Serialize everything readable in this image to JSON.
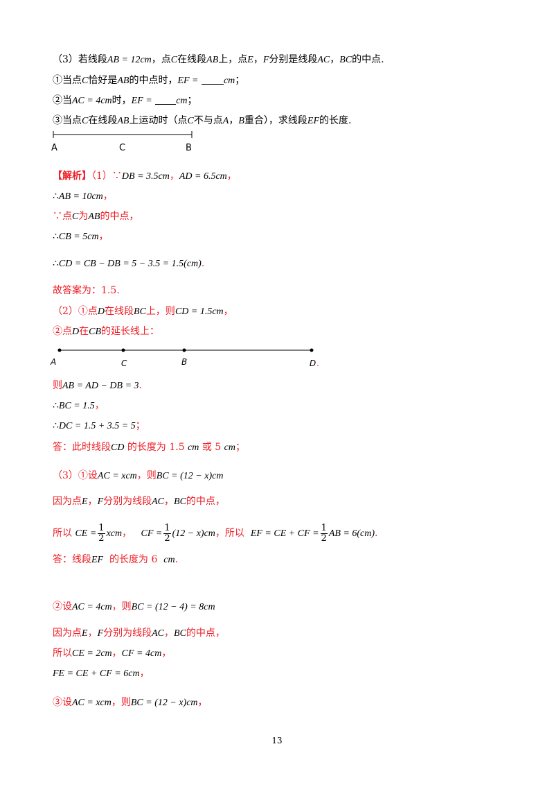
{
  "q3_stem": "（3）若线段AB = 12cm，点C在线段AB上，点E，F分别是线段AC，BC的中点.",
  "q3_stem_parts": {
    "a": "（3）若线段",
    "b": "AB = 12cm",
    "c": "，点",
    "d": "C",
    "e": "在线段",
    "f": "AB",
    "g": "上，点",
    "h": "E",
    "i": "，",
    "j": "F",
    "k": "分别是线段",
    "l": "AC",
    "m": "，",
    "n": "BC",
    "o": "的中点."
  },
  "q3_1": {
    "a": "①当点",
    "b": "C",
    "c": "恰好是",
    "d": "AB",
    "e": "的中点时，",
    "f": "EF =",
    "g": "cm",
    "h": "；"
  },
  "q3_2": {
    "a": "②当",
    "b": "AC = 4cm",
    "c": "时，",
    "d": "EF =",
    "e": "cm",
    "f": "；"
  },
  "q3_3": {
    "a": "③当点",
    "b": "C",
    "c": "在线段",
    "d": "AB",
    "e": "上运动时（点",
    "f": "C",
    "g": "不与点",
    "h": "A",
    "i": "，",
    "j": "B",
    "k": "重合），求线段",
    "l": "EF",
    "m": "的长度."
  },
  "fig1_labels": {
    "a": "A",
    "c": "C",
    "b": "B"
  },
  "jiexi": {
    "tag": "【解析】",
    "a": "（1）∵",
    "b": "DB = 3.5cm",
    "c": "，",
    "d": "AD = 6.5cm",
    "e": "，"
  },
  "s1": {
    "a": "∴",
    "b": "AB = 10cm",
    "c": "，"
  },
  "s2": {
    "a": "∵点",
    "b": "C",
    "c": "为",
    "d": "AB",
    "e": "的中点，"
  },
  "s3": {
    "a": "∴",
    "b": "CB = 5cm",
    "c": "，"
  },
  "s4": {
    "a": "∴",
    "b": "CD = CB − DB = 5 − 3.5 = 1.5(cm)",
    "c": "."
  },
  "s5": "故答案为：1.5.",
  "s6": {
    "a": "（2）①点",
    "b": "D",
    "c": "在线段",
    "d": "BC",
    "e": "上，则",
    "f": "CD = 1.5cm",
    "g": "，"
  },
  "s7": {
    "a": "②点",
    "b": "D",
    "c": "在",
    "d": "CB",
    "e": "的延长线上："
  },
  "fig2_labels": {
    "a": "A",
    "c": "C",
    "b": "B",
    "d": "D",
    "dot": "."
  },
  "s8": {
    "a": "则",
    "b": "AB = AD − DB = 3",
    "c": "."
  },
  "s9": {
    "a": "∴",
    "b": "BC = 1.5",
    "c": "，"
  },
  "s10": {
    "a": "∴",
    "b": "DC = 1.5 + 3.5 = 5",
    "c": "；"
  },
  "s11": {
    "a": "答：此时线段",
    "b": "CD",
    "c": "的长度为 1.5",
    "d": "cm",
    "e": "或 5",
    "f": "cm",
    "g": "；"
  },
  "s12": {
    "a": "（3）①设",
    "b": "AC = xcm",
    "c": "，则",
    "d": "BC = (12 − x)cm"
  },
  "s13": {
    "a": "因为点",
    "b": "E",
    "c": "，",
    "d": "F",
    "e": "分别为线段",
    "f": "AC",
    "g": "，",
    "h": "BC",
    "i": "的中点，"
  },
  "s14": {
    "a": "所以",
    "b": "CE =",
    "frac_num": "1",
    "frac_den": "2",
    "c": "xcm",
    "d": "，",
    "e": "CF =",
    "f": "(12 − x)cm",
    "g": "，所以",
    "h": "EF = CE + CF =",
    "i": "AB = 6(cm)",
    "j": "."
  },
  "s15": {
    "a": "答：线段",
    "b": "EF",
    "c": "的长度为 6",
    "d": "cm",
    "e": "."
  },
  "s16": {
    "a": "②设",
    "b": "AC = 4cm",
    "c": "，则",
    "d": "BC = (12 − 4) = 8cm"
  },
  "s17": {
    "a": "因为点",
    "b": "E",
    "c": "，",
    "d": "F",
    "e": "分别为线段",
    "f": "AC",
    "g": "，",
    "h": "BC",
    "i": "的中点，"
  },
  "s18": {
    "a": "所以",
    "b": "CE = 2cm",
    "c": "，",
    "d": "CF = 4cm",
    "e": "，"
  },
  "s19": {
    "a": "FE = CE + CF = 6cm",
    "b": "，"
  },
  "s20": {
    "a": "③设",
    "b": "AC = xcm",
    "c": "，则",
    "d": "BC = (12 − x)cm",
    "e": "，"
  },
  "page_number": "13"
}
